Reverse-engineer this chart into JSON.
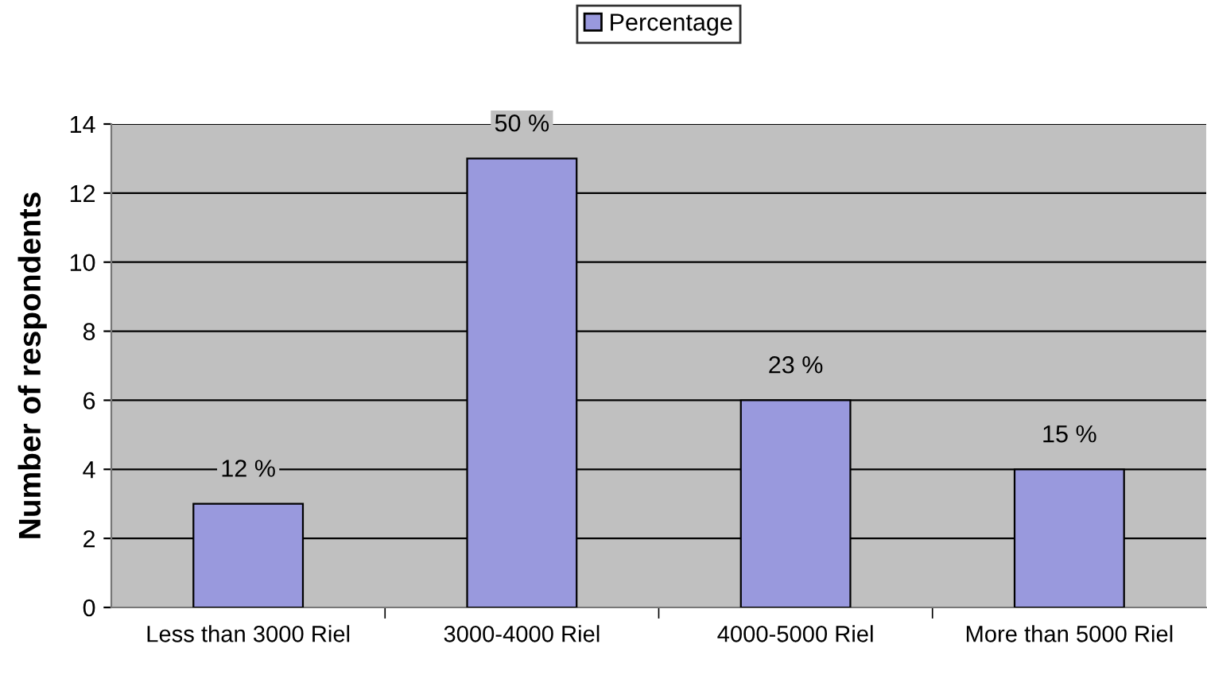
{
  "chart_data": {
    "type": "bar",
    "ylabel": "Number of respondents",
    "categories": [
      "Less than 3000 Riel",
      "3000-4000 Riel",
      "4000-5000 Riel",
      "More than 5000 Riel"
    ],
    "series": [
      {
        "name": "Percentage",
        "color": "#9999dd",
        "values": [
          3,
          13,
          6,
          4
        ]
      }
    ],
    "annotations": [
      {
        "text": "12 %",
        "x": "Less than 3000 Riel",
        "y": 3
      },
      {
        "text": "50 %",
        "x": "3000-4000 Riel",
        "y": 13
      },
      {
        "text": "23 %",
        "x": "4000-5000 Riel",
        "y": 6
      },
      {
        "text": "15 %",
        "x": "More than 5000 Riel",
        "y": 4
      }
    ],
    "ylim": [
      0,
      14
    ],
    "yticks": [
      0,
      2,
      4,
      6,
      8,
      10,
      12,
      14
    ],
    "grid": "y",
    "legend": "top"
  }
}
